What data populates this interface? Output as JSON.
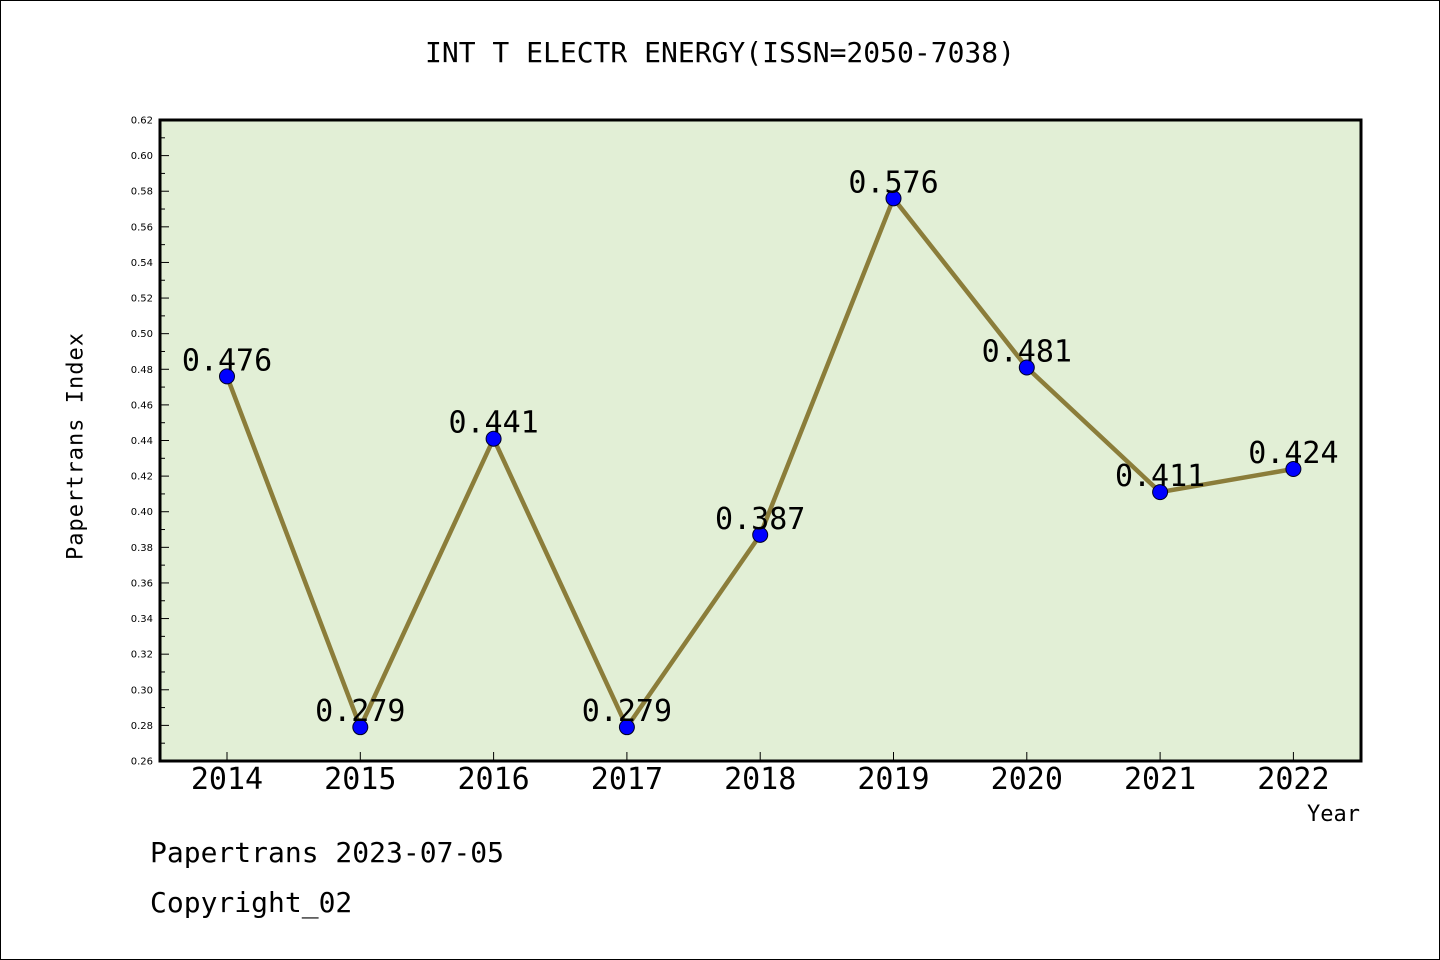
{
  "chart_data": {
    "type": "line",
    "title": "INT T ELECTR ENERGY(ISSN=2050-7038)",
    "xlabel": "Year",
    "ylabel": "Papertrans Index",
    "categories": [
      "2014",
      "2015",
      "2016",
      "2017",
      "2018",
      "2019",
      "2020",
      "2021",
      "2022"
    ],
    "series": [
      {
        "values": [
          0.476,
          0.279,
          0.441,
          0.279,
          0.387,
          0.576,
          0.481,
          0.411,
          0.424
        ]
      }
    ],
    "data_labels": [
      "0.476",
      "0.279",
      "0.441",
      "0.279",
      "0.387",
      "0.576",
      "0.481",
      "0.411",
      "0.424"
    ],
    "ylim": [
      0.26,
      0.62
    ],
    "yticks": [
      "0.26",
      "0.28",
      "0.30",
      "0.32",
      "0.34",
      "0.36",
      "0.38",
      "0.40",
      "0.42",
      "0.44",
      "0.46",
      "0.48",
      "0.50",
      "0.52",
      "0.54",
      "0.56",
      "0.58",
      "0.60",
      "0.62"
    ],
    "grid": false,
    "colors": {
      "plot_background": "#e2efd6",
      "line": "#8b7d3a",
      "marker": "#0000ff"
    }
  },
  "footer": {
    "line1": "Papertrans 2023-07-05",
    "line2": "Copyright_02"
  }
}
